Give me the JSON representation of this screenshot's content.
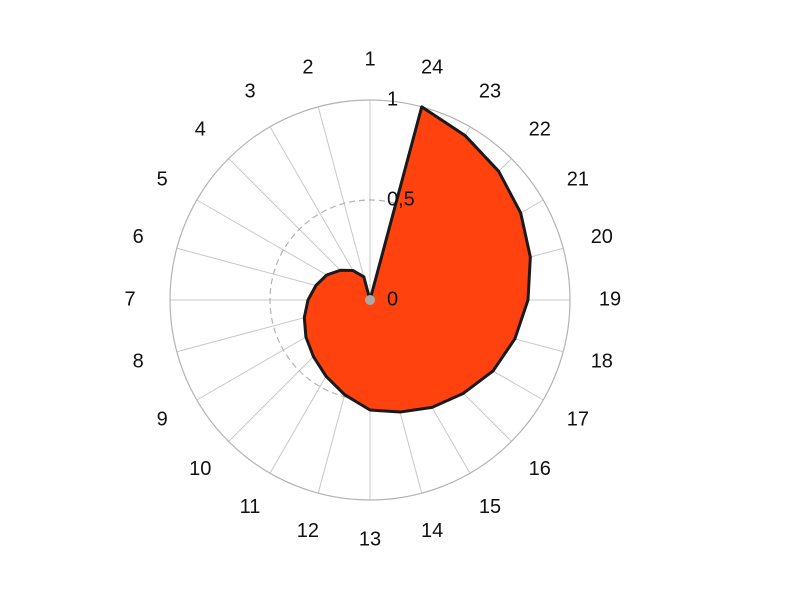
{
  "chart_data": {
    "type": "radar",
    "categories": [
      "1",
      "2",
      "3",
      "4",
      "5",
      "6",
      "7",
      "8",
      "9",
      "10",
      "11",
      "12",
      "13",
      "14",
      "15",
      "16",
      "17",
      "18",
      "19",
      "20",
      "21",
      "22",
      "23",
      "24"
    ],
    "values": [
      0,
      0.12,
      0.17,
      0.21,
      0.25,
      0.28,
      0.31,
      0.34,
      0.37,
      0.4,
      0.44,
      0.49,
      0.55,
      0.58,
      0.62,
      0.66,
      0.71,
      0.75,
      0.79,
      0.83,
      0.87,
      0.91,
      0.95,
      1
    ],
    "color": "#ff420e",
    "ylim": [
      0,
      1
    ],
    "yticks": [
      0,
      {
        "value": 0.5,
        "label": "0,5"
      },
      1
    ],
    "grid": true
  }
}
